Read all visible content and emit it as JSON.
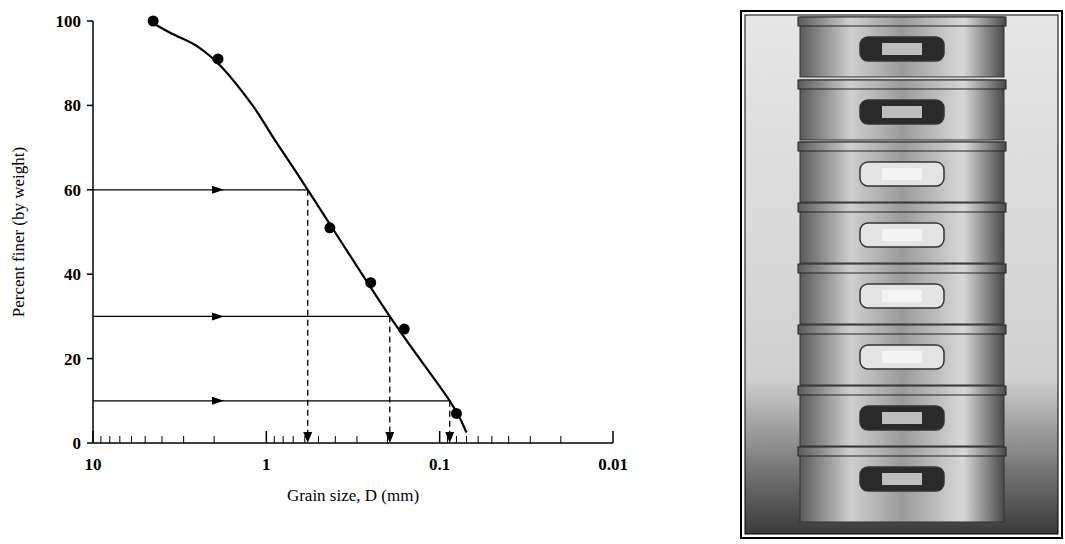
{
  "chart_data": {
    "type": "line",
    "x_label": "Grain size, D (mm)",
    "y_label": "Percent finer (by weight)",
    "log": "x",
    "grid": false,
    "xlim": [
      10,
      0.01
    ],
    "ylim": [
      0,
      100
    ],
    "xticks": [
      10,
      1,
      0.1,
      0.01
    ],
    "yticks": [
      0,
      20,
      40,
      60,
      80,
      100
    ],
    "series": [
      {
        "type": "line",
        "line_style": "solid",
        "color": "#000000",
        "x": [
          4.75,
          3.5,
          2.5,
          1.8,
          1.2,
          0.9,
          0.577,
          0.194,
          0.0875,
          0.07
        ],
        "values": [
          100,
          97,
          94,
          89,
          80,
          72,
          60,
          30,
          10,
          2.5
        ]
      },
      {
        "type": "scatter",
        "marker": "circle",
        "color": "#000000",
        "x": [
          4.5,
          1.9,
          0.43,
          0.25,
          0.16,
          0.08
        ],
        "values": [
          100,
          91,
          51,
          38,
          27,
          7
        ]
      }
    ],
    "reference_lines": [
      {
        "x": 0.577,
        "y": 60
      },
      {
        "x": 0.194,
        "y": 30
      },
      {
        "x": 0.0875,
        "y": 10
      }
    ]
  }
}
